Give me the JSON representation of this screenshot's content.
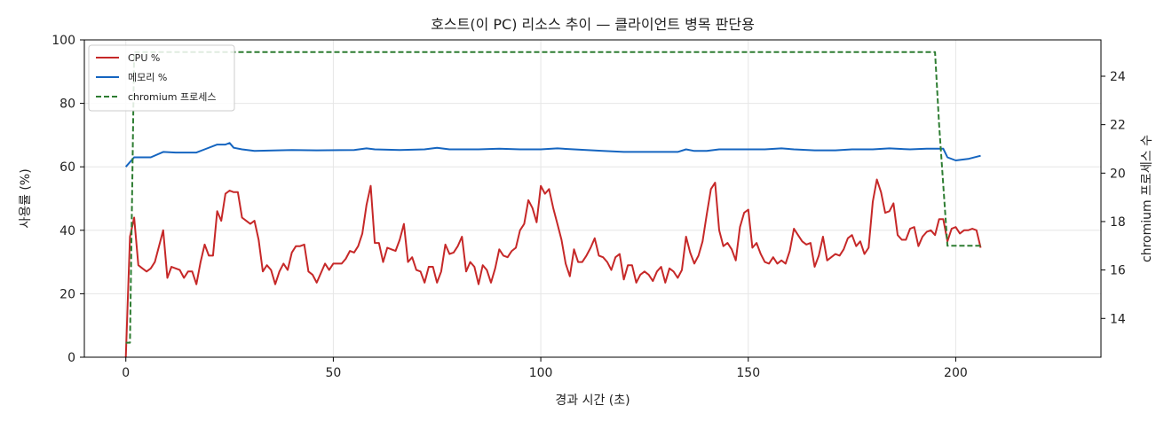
{
  "chart_data": {
    "type": "line",
    "title": "호스트(이 PC) 리소스 추이 — 클라이언트 병목 판단용",
    "xlabel": "경과 시간 (초)",
    "ylabel": "사용률 (%)",
    "y2label": "chromium 프로세스 수",
    "xlim": [
      -10,
      235
    ],
    "ylim": [
      0,
      100
    ],
    "y2lim": [
      12.4,
      25.5
    ],
    "x_ticks": [
      0,
      50,
      100,
      150,
      200
    ],
    "y_ticks": [
      0,
      20,
      40,
      60,
      80,
      100
    ],
    "y2_ticks": [
      14,
      16,
      18,
      20,
      22,
      24
    ],
    "grid": true,
    "legend_position": "top-left",
    "series": [
      {
        "name": "CPU %",
        "axis": "left",
        "color": "#c62828",
        "style": "solid",
        "points": [
          [
            0,
            0
          ],
          [
            1,
            38
          ],
          [
            2,
            44
          ],
          [
            3,
            29
          ],
          [
            4,
            28
          ],
          [
            5,
            27
          ],
          [
            6,
            28
          ],
          [
            7,
            30
          ],
          [
            8,
            35
          ],
          [
            9,
            40
          ],
          [
            10,
            25
          ],
          [
            11,
            28.5
          ],
          [
            12,
            28
          ],
          [
            13,
            27.5
          ],
          [
            14,
            25
          ],
          [
            15,
            27
          ],
          [
            16,
            27
          ],
          [
            17,
            23
          ],
          [
            18,
            30
          ],
          [
            19,
            35.5
          ],
          [
            20,
            32
          ],
          [
            21,
            32
          ],
          [
            22,
            46
          ],
          [
            23,
            43
          ],
          [
            24,
            51.5
          ],
          [
            25,
            52.5
          ],
          [
            26,
            52
          ],
          [
            27,
            52
          ],
          [
            28,
            44
          ],
          [
            29,
            43
          ],
          [
            30,
            42
          ],
          [
            31,
            43
          ],
          [
            32,
            37
          ],
          [
            33,
            27
          ],
          [
            34,
            29
          ],
          [
            35,
            27.5
          ],
          [
            36,
            23
          ],
          [
            37,
            27
          ],
          [
            38,
            29.5
          ],
          [
            39,
            27.5
          ],
          [
            40,
            33
          ],
          [
            41,
            35
          ],
          [
            42,
            35
          ],
          [
            43,
            35.5
          ],
          [
            44,
            27
          ],
          [
            45,
            26
          ],
          [
            46,
            23.5
          ],
          [
            47,
            26.5
          ],
          [
            48,
            29.5
          ],
          [
            49,
            27.5
          ],
          [
            50,
            29.5
          ],
          [
            51,
            29.5
          ],
          [
            52,
            29.5
          ],
          [
            53,
            31
          ],
          [
            54,
            33.5
          ],
          [
            55,
            33
          ],
          [
            56,
            35
          ],
          [
            57,
            39
          ],
          [
            58,
            48
          ],
          [
            59,
            54
          ],
          [
            60,
            36
          ],
          [
            61,
            36
          ],
          [
            62,
            30
          ],
          [
            63,
            34.5
          ],
          [
            64,
            34
          ],
          [
            65,
            33.5
          ],
          [
            66,
            37
          ],
          [
            67,
            42
          ],
          [
            68,
            30
          ],
          [
            69,
            31.5
          ],
          [
            70,
            27.5
          ],
          [
            71,
            27
          ],
          [
            72,
            23.5
          ],
          [
            73,
            28.5
          ],
          [
            74,
            28.5
          ],
          [
            75,
            23.5
          ],
          [
            76,
            27
          ],
          [
            77,
            35.5
          ],
          [
            78,
            32.5
          ],
          [
            79,
            33
          ],
          [
            80,
            35
          ],
          [
            81,
            38
          ],
          [
            82,
            27
          ],
          [
            83,
            30
          ],
          [
            84,
            28.5
          ],
          [
            85,
            23
          ],
          [
            86,
            29
          ],
          [
            87,
            27.5
          ],
          [
            88,
            23.5
          ],
          [
            89,
            28
          ],
          [
            90,
            34
          ],
          [
            91,
            32
          ],
          [
            92,
            31.5
          ],
          [
            93,
            33.5
          ],
          [
            94,
            34.5
          ],
          [
            95,
            40
          ],
          [
            96,
            42
          ],
          [
            97,
            49.5
          ],
          [
            98,
            47
          ],
          [
            99,
            42.5
          ],
          [
            100,
            54
          ],
          [
            101,
            51.5
          ],
          [
            102,
            53
          ],
          [
            103,
            47
          ],
          [
            104,
            42
          ],
          [
            105,
            37
          ],
          [
            106,
            29.5
          ],
          [
            107,
            25.5
          ],
          [
            108,
            34
          ],
          [
            109,
            30
          ],
          [
            110,
            30
          ],
          [
            111,
            32
          ],
          [
            112,
            34.5
          ],
          [
            113,
            37.5
          ],
          [
            114,
            32
          ],
          [
            115,
            31.5
          ],
          [
            116,
            30
          ],
          [
            117,
            27.5
          ],
          [
            118,
            31.5
          ],
          [
            119,
            32.5
          ],
          [
            120,
            24.5
          ],
          [
            121,
            29
          ],
          [
            122,
            29
          ],
          [
            123,
            23.5
          ],
          [
            124,
            26
          ],
          [
            125,
            27
          ],
          [
            126,
            26
          ],
          [
            127,
            24
          ],
          [
            128,
            27
          ],
          [
            129,
            28.5
          ],
          [
            130,
            23.5
          ],
          [
            131,
            28
          ],
          [
            132,
            27
          ],
          [
            133,
            25
          ],
          [
            134,
            27.5
          ],
          [
            135,
            38
          ],
          [
            136,
            33
          ],
          [
            137,
            29.5
          ],
          [
            138,
            32
          ],
          [
            139,
            36.5
          ],
          [
            140,
            45
          ],
          [
            141,
            53
          ],
          [
            142,
            55
          ],
          [
            143,
            40
          ],
          [
            144,
            35
          ],
          [
            145,
            36
          ],
          [
            146,
            34
          ],
          [
            147,
            30.5
          ],
          [
            148,
            41
          ],
          [
            149,
            45.5
          ],
          [
            150,
            46.5
          ],
          [
            151,
            34.5
          ],
          [
            152,
            36
          ],
          [
            153,
            32.5
          ],
          [
            154,
            30
          ],
          [
            155,
            29.5
          ],
          [
            156,
            31.5
          ],
          [
            157,
            29.5
          ],
          [
            158,
            30.5
          ],
          [
            159,
            29.5
          ],
          [
            160,
            33.5
          ],
          [
            161,
            40.5
          ],
          [
            162,
            38.5
          ],
          [
            163,
            36.5
          ],
          [
            164,
            35.5
          ],
          [
            165,
            36
          ],
          [
            166,
            28.5
          ],
          [
            167,
            32
          ],
          [
            168,
            38
          ],
          [
            169,
            30.5
          ],
          [
            170,
            31.5
          ],
          [
            171,
            32.5
          ],
          [
            172,
            32
          ],
          [
            173,
            34
          ],
          [
            174,
            37.5
          ],
          [
            175,
            38.5
          ],
          [
            176,
            35
          ],
          [
            177,
            36.5
          ],
          [
            178,
            32.5
          ],
          [
            179,
            34.5
          ],
          [
            180,
            49
          ],
          [
            181,
            56
          ],
          [
            182,
            52
          ],
          [
            183,
            45.5
          ],
          [
            184,
            46
          ],
          [
            185,
            48.5
          ],
          [
            186,
            38.5
          ],
          [
            187,
            37
          ],
          [
            188,
            37
          ],
          [
            189,
            40.5
          ],
          [
            190,
            41
          ],
          [
            191,
            35
          ],
          [
            192,
            38
          ],
          [
            193,
            39.5
          ],
          [
            194,
            40
          ],
          [
            195,
            38.5
          ],
          [
            196,
            43.5
          ],
          [
            197,
            43.5
          ],
          [
            198,
            36.5
          ],
          [
            199,
            40.5
          ],
          [
            200,
            41
          ],
          [
            201,
            39
          ],
          [
            202,
            40
          ],
          [
            203,
            40
          ],
          [
            204,
            40.5
          ],
          [
            205,
            40
          ],
          [
            206,
            34.5
          ]
        ]
      },
      {
        "name": "메모리 %",
        "axis": "left",
        "color": "#1565c0",
        "style": "solid",
        "points": [
          [
            0,
            60
          ],
          [
            2,
            63
          ],
          [
            3,
            63
          ],
          [
            6,
            63
          ],
          [
            9,
            64.7
          ],
          [
            12,
            64.5
          ],
          [
            17,
            64.5
          ],
          [
            19,
            65.5
          ],
          [
            22,
            67
          ],
          [
            24,
            67
          ],
          [
            25,
            67.5
          ],
          [
            26,
            66
          ],
          [
            28,
            65.5
          ],
          [
            31,
            65
          ],
          [
            40,
            65.3
          ],
          [
            46,
            65.2
          ],
          [
            55,
            65.3
          ],
          [
            58,
            65.8
          ],
          [
            60,
            65.5
          ],
          [
            66,
            65.3
          ],
          [
            72,
            65.5
          ],
          [
            75,
            66
          ],
          [
            78,
            65.5
          ],
          [
            85,
            65.5
          ],
          [
            90,
            65.7
          ],
          [
            95,
            65.5
          ],
          [
            100,
            65.5
          ],
          [
            104,
            65.8
          ],
          [
            108,
            65.5
          ],
          [
            115,
            65
          ],
          [
            120,
            64.7
          ],
          [
            125,
            64.7
          ],
          [
            130,
            64.7
          ],
          [
            133,
            64.7
          ],
          [
            135,
            65.5
          ],
          [
            137,
            65
          ],
          [
            140,
            65
          ],
          [
            143,
            65.5
          ],
          [
            147,
            65.5
          ],
          [
            150,
            65.5
          ],
          [
            154,
            65.5
          ],
          [
            158,
            65.8
          ],
          [
            161,
            65.5
          ],
          [
            166,
            65.2
          ],
          [
            171,
            65.2
          ],
          [
            175,
            65.5
          ],
          [
            180,
            65.5
          ],
          [
            184,
            65.8
          ],
          [
            189,
            65.5
          ],
          [
            193,
            65.7
          ],
          [
            197,
            65.7
          ],
          [
            198,
            63
          ],
          [
            200,
            62
          ],
          [
            203,
            62.5
          ],
          [
            206,
            63.5
          ]
        ]
      },
      {
        "name": "chromium 프로세스",
        "axis": "right",
        "color": "#2e7d32",
        "style": "dashed",
        "points": [
          [
            0,
            13
          ],
          [
            1,
            13
          ],
          [
            2,
            25
          ],
          [
            195,
            25
          ],
          [
            196,
            22
          ],
          [
            198,
            17
          ],
          [
            206,
            17
          ]
        ]
      }
    ]
  }
}
